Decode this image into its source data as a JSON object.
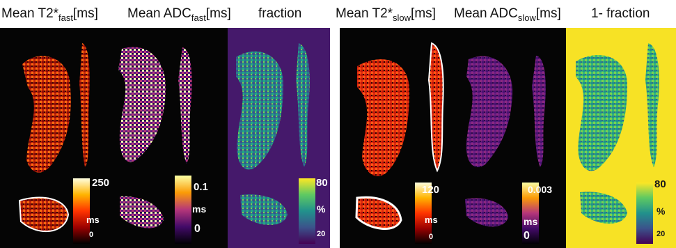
{
  "headers": {
    "t2_fast": {
      "main": "Mean T2*",
      "sub": "fast",
      "unit": "[ms]"
    },
    "adc_fast": {
      "main": "Mean ADC",
      "sub": "fast",
      "unit": "[ms]"
    },
    "fraction": {
      "main": "fraction"
    },
    "t2_slow": {
      "main": "Mean T2*",
      "sub": "slow",
      "unit": "[ms]"
    },
    "adc_slow": {
      "main": "Mean ADC",
      "sub": "slow",
      "unit": "[ms]"
    },
    "one_minus_fraction": {
      "main": "1- fraction"
    }
  },
  "colorbars": {
    "t2_fast": {
      "max": "250",
      "unit": "ms",
      "min": "0",
      "colormap": "hot"
    },
    "adc_fast": {
      "max": "0.1",
      "unit": "ms",
      "min": "0",
      "colormap": "inferno"
    },
    "fraction": {
      "max": "80",
      "unit": "%",
      "min": "20",
      "colormap": "viridis"
    },
    "t2_slow": {
      "max": "120",
      "unit": "ms",
      "min": "0",
      "colormap": "hot"
    },
    "adc_slow": {
      "max": "0.003",
      "unit": "ms",
      "min": "0",
      "colormap": "inferno"
    },
    "one_minus_fraction": {
      "max": "80",
      "unit": "%",
      "min": "20",
      "colormap": "viridis"
    }
  },
  "colors": {
    "background_dark": "#050505",
    "fraction_bg": "#45196b",
    "one_minus_fraction_bg": "#f7e225",
    "divider": "#ffffff"
  }
}
